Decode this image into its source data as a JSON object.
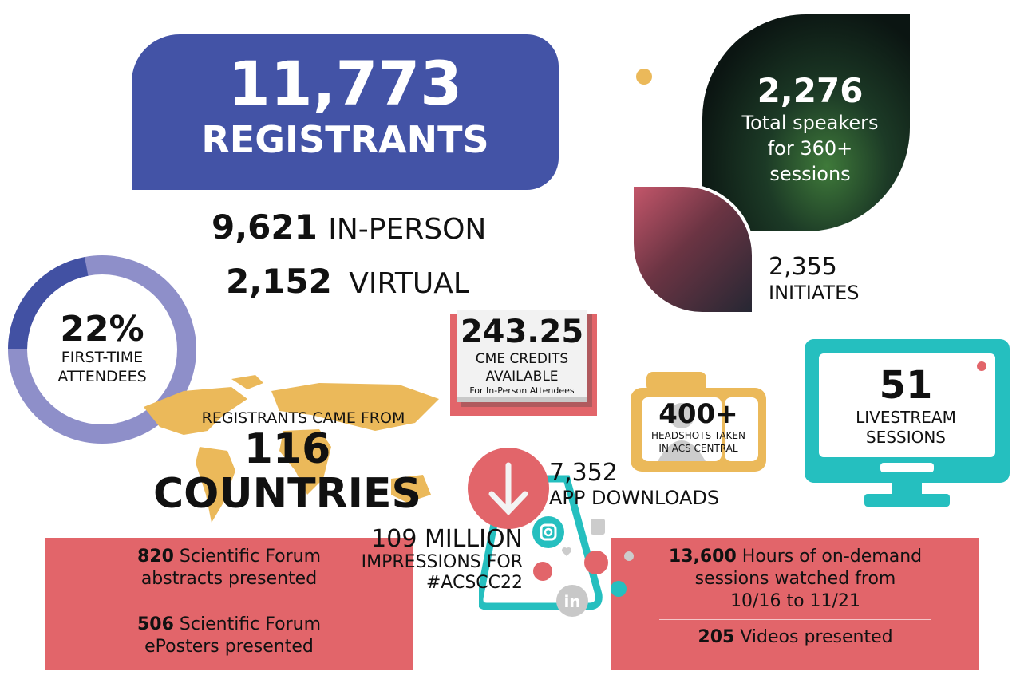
{
  "registrants": {
    "count": "11,773",
    "label": "REGISTRANTS"
  },
  "in_person": {
    "count": "9,621",
    "label": "IN-PERSON"
  },
  "virtual": {
    "count": "2,152",
    "label": "VIRTUAL"
  },
  "first_time": {
    "percent": "22%",
    "label_line1": "FIRST-TIME",
    "label_line2": "ATTENDEES",
    "value": 22
  },
  "countries": {
    "intro": "REGISTRANTS CAME FROM",
    "count": "116 COUNTRIES"
  },
  "cme": {
    "count": "243.25",
    "line1": "CME CREDITS",
    "line2": "AVAILABLE",
    "note": "For In-Person Attendees"
  },
  "headshots": {
    "count": "400+",
    "line1": "HEADSHOTS TAKEN",
    "line2": "IN ACS CENTRAL"
  },
  "livestream": {
    "count": "51",
    "line1": "LIVESTREAM",
    "line2": "SESSIONS"
  },
  "speakers": {
    "count": "2,276",
    "line1": "Total speakers",
    "line2": "for 360+",
    "line3": "sessions"
  },
  "initiates": {
    "count": "2,355",
    "label": "INITIATES"
  },
  "app": {
    "count": "7,352",
    "label": "APP DOWNLOADS"
  },
  "impressions": {
    "count": "109 MILLION",
    "line1": "IMPRESSIONS FOR",
    "line2": "#ACSCC22"
  },
  "forum": {
    "abstracts_num": "820",
    "abstracts_text": " Scientific Forum",
    "abstracts_line2": "abstracts presented",
    "eposters_num": "506",
    "eposters_text": " Scientific Forum",
    "eposters_line2": "ePosters presented"
  },
  "ondemand": {
    "hours_num": "13,600",
    "hours_text": " Hours of on-demand",
    "hours_line2": "sessions watched from",
    "hours_line3": "10/16 to 11/21",
    "videos_num": "205",
    "videos_text": " Videos presented"
  },
  "colors": {
    "blue": "#4353a6",
    "lavender": "#8e8fc9",
    "gold": "#ebb95a",
    "coral": "#e2656a",
    "teal": "#25bfbf"
  },
  "icons": [
    "download-icon",
    "instagram-icon",
    "twitter-icon",
    "whatsapp-icon",
    "linkedin-icon",
    "facebook-icon",
    "thumbs-up-icon",
    "heart-icon",
    "user-icon",
    "camera-icon",
    "monitor-icon",
    "book-icon",
    "world-map-icon"
  ]
}
